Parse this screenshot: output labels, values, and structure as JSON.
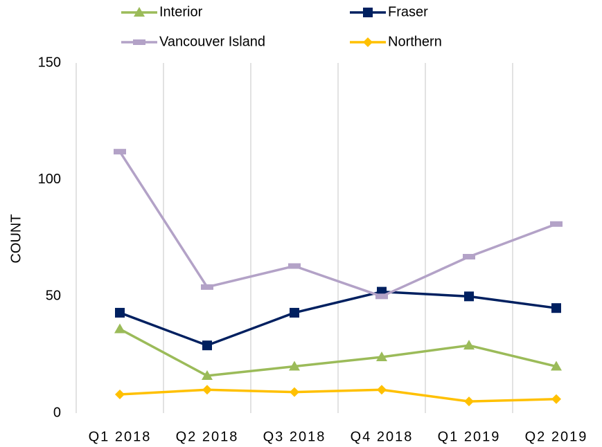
{
  "chart_data": {
    "type": "line",
    "y_label": "COUNT",
    "categories": [
      "Q1 2018",
      "Q2 2018",
      "Q3 2018",
      "Q4 2018",
      "Q1 2019",
      "Q2 2019"
    ],
    "series": [
      {
        "name": "Interior",
        "color": "#9bbb59",
        "marker": "triangle",
        "values": [
          36,
          16,
          20,
          24,
          29,
          20
        ]
      },
      {
        "name": "Fraser",
        "color": "#002060",
        "marker": "square",
        "values": [
          43,
          29,
          43,
          52,
          50,
          45
        ]
      },
      {
        "name": "Vancouver Island",
        "color": "#b3a2c7",
        "marker": "dash",
        "values": [
          112,
          54,
          63,
          50,
          67,
          81
        ]
      },
      {
        "name": "Northern",
        "color": "#ffc000",
        "marker": "diamond",
        "values": [
          8,
          10,
          9,
          10,
          5,
          6
        ]
      }
    ],
    "ylim": [
      0,
      150
    ],
    "yticks": [
      0,
      50,
      100,
      150
    ],
    "grid": "vertical",
    "legend": "top"
  }
}
